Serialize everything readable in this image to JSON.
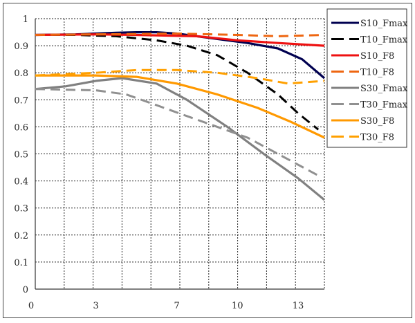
{
  "chart_data": {
    "type": "line",
    "title": "",
    "xlabel": "",
    "ylabel": "",
    "xlim": [
      0,
      14.3
    ],
    "ylim": [
      0,
      1
    ],
    "x_ticks": [
      0,
      3,
      7,
      10,
      13
    ],
    "x_tick_labels": [
      "0",
      "3",
      "7",
      "10",
      "13"
    ],
    "y_ticks": [
      0,
      0.1,
      0.2,
      0.3,
      0.4,
      0.5,
      0.6,
      0.7,
      0.8,
      0.9,
      1
    ],
    "y_tick_labels": [
      "0",
      "0.1",
      "0.2",
      "0.3",
      "0.4",
      "0.5",
      "0.6",
      "0.7",
      "0.8",
      "0.9",
      "1"
    ],
    "grid": true,
    "legend_position": "right-top",
    "series": [
      {
        "name": "S10_Fmax",
        "color": "#000050",
        "dash": false,
        "x": [
          0,
          2,
          4,
          5,
          6,
          7,
          8.5,
          10.5,
          12,
          13.2,
          14.3
        ],
        "y": [
          0.94,
          0.942,
          0.948,
          0.95,
          0.95,
          0.945,
          0.93,
          0.91,
          0.89,
          0.85,
          0.78
        ]
      },
      {
        "name": "T10_Fmax",
        "color": "#000000",
        "dash": true,
        "x": [
          0,
          2,
          4,
          6,
          7.5,
          9,
          10.5,
          12,
          13,
          14
        ],
        "y": [
          0.94,
          0.94,
          0.935,
          0.92,
          0.9,
          0.865,
          0.8,
          0.72,
          0.65,
          0.59
        ]
      },
      {
        "name": "S10_F8",
        "color": "#ee1111",
        "dash": false,
        "x": [
          0,
          3,
          5,
          8,
          10,
          12,
          14.3
        ],
        "y": [
          0.94,
          0.942,
          0.94,
          0.935,
          0.92,
          0.91,
          0.9
        ]
      },
      {
        "name": "T10_F8",
        "color": "#ee6611",
        "dash": true,
        "x": [
          0,
          3,
          7,
          10,
          12,
          14.3
        ],
        "y": [
          0.94,
          0.942,
          0.945,
          0.94,
          0.935,
          0.94
        ]
      },
      {
        "name": "S30_Fmax",
        "color": "#808080",
        "dash": false,
        "x": [
          0,
          1.5,
          3,
          4.3,
          6,
          7.5,
          9.5,
          11.3,
          13,
          14.3
        ],
        "y": [
          0.74,
          0.75,
          0.77,
          0.78,
          0.76,
          0.7,
          0.6,
          0.5,
          0.41,
          0.33
        ]
      },
      {
        "name": "T30_Fmax",
        "color": "#909090",
        "dash": true,
        "x": [
          0,
          3,
          4.5,
          6,
          7.5,
          9,
          10.5,
          12,
          14
        ],
        "y": [
          0.74,
          0.735,
          0.72,
          0.68,
          0.64,
          0.6,
          0.56,
          0.5,
          0.42
        ]
      },
      {
        "name": "S30_F8",
        "color": "#ff9900",
        "dash": false,
        "x": [
          0,
          3,
          5,
          7,
          9,
          11,
          12.6,
          14.3
        ],
        "y": [
          0.79,
          0.79,
          0.785,
          0.76,
          0.72,
          0.67,
          0.62,
          0.56
        ]
      },
      {
        "name": "T30_F8",
        "color": "#ffa000",
        "dash": true,
        "x": [
          0,
          3,
          5,
          7,
          9,
          11,
          12.5,
          14.3
        ],
        "y": [
          0.79,
          0.8,
          0.81,
          0.81,
          0.8,
          0.78,
          0.76,
          0.77
        ]
      }
    ]
  }
}
